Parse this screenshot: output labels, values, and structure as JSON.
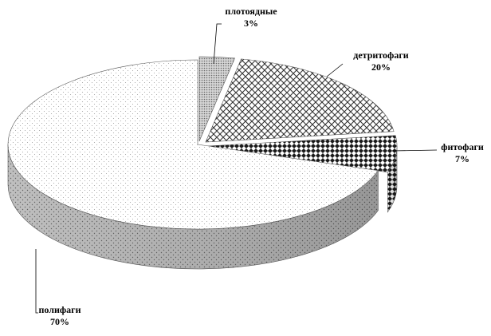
{
  "chart_data": {
    "type": "pie",
    "style": "3d-exploded",
    "title": "",
    "slices": [
      {
        "name": "плотоядные",
        "value": 3,
        "label": "3%",
        "pattern": "dense-dots"
      },
      {
        "name": "детритофаги",
        "value": 20,
        "label": "20%",
        "pattern": "weave"
      },
      {
        "name": "фитофаги",
        "value": 7,
        "label": "7%",
        "pattern": "checker"
      },
      {
        "name": "полифаги",
        "value": 70,
        "label": "70%",
        "pattern": "sparse-dots"
      }
    ],
    "legend": "none",
    "colors": {
      "outline": "#555555",
      "leader": "#000000"
    }
  }
}
